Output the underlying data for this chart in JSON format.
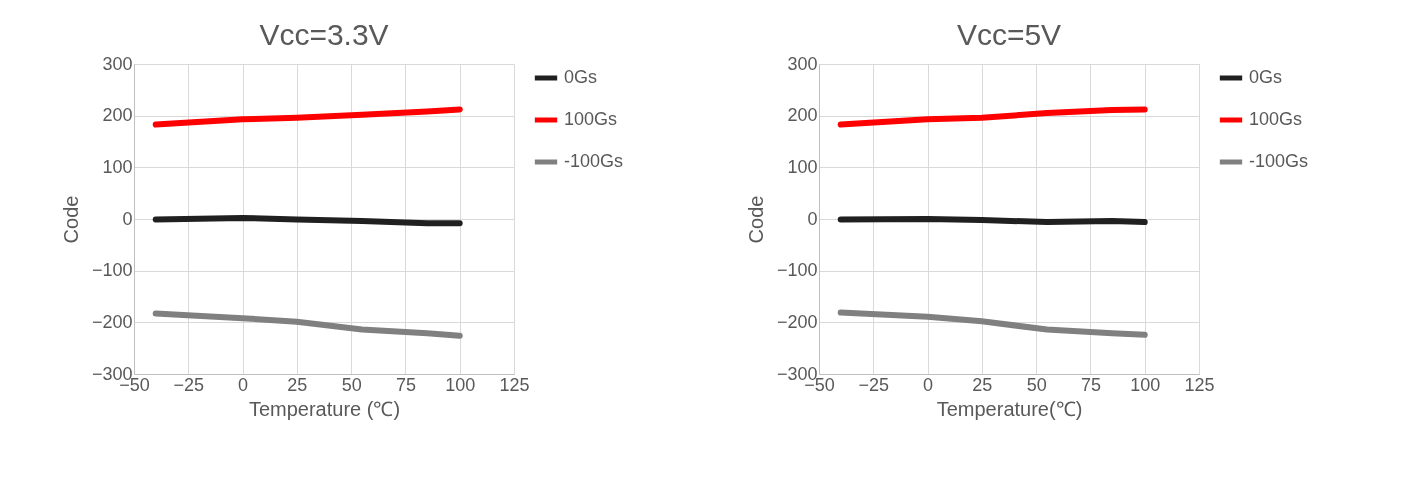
{
  "chart_data": [
    {
      "type": "line",
      "title": "Vcc=3.3V",
      "xlabel": "Temperature (℃)",
      "ylabel": "Code",
      "xlim": [
        -50,
        125
      ],
      "xticks": [
        -50,
        -25,
        0,
        25,
        50,
        75,
        100,
        125
      ],
      "ylim": [
        -300,
        300
      ],
      "yticks": [
        -300,
        -200,
        -100,
        0,
        100,
        200,
        300
      ],
      "grid": true,
      "legend": "right",
      "marker": "none",
      "line_style": "solid",
      "series": [
        {
          "name": "0Gs",
          "color": "#202020",
          "x": [
            -40,
            0,
            25,
            55,
            85,
            100
          ],
          "values": [
            -1,
            2,
            -1,
            -4,
            -8,
            -8
          ]
        },
        {
          "name": "100Gs",
          "color": "#ff0000",
          "x": [
            -40,
            0,
            25,
            55,
            85,
            100
          ],
          "values": [
            183,
            193,
            196,
            202,
            208,
            212
          ]
        },
        {
          "name": "-100Gs",
          "color": "#808080",
          "x": [
            -40,
            0,
            25,
            55,
            85,
            100
          ],
          "values": [
            -183,
            -192,
            -199,
            -214,
            -221,
            -226
          ]
        }
      ]
    },
    {
      "type": "line",
      "title": "Vcc=5V",
      "xlabel": "Temperature(℃)",
      "ylabel": "Code",
      "xlim": [
        -50,
        125
      ],
      "xticks": [
        -50,
        -25,
        0,
        25,
        50,
        75,
        100,
        125
      ],
      "ylim": [
        -300,
        300
      ],
      "yticks": [
        -300,
        -200,
        -100,
        0,
        100,
        200,
        300
      ],
      "grid": true,
      "legend": "right",
      "marker": "none",
      "line_style": "solid",
      "series": [
        {
          "name": "0Gs",
          "color": "#202020",
          "x": [
            -40,
            0,
            25,
            55,
            85,
            100
          ],
          "values": [
            -1,
            0,
            -2,
            -6,
            -4,
            -6
          ]
        },
        {
          "name": "100Gs",
          "color": "#ff0000",
          "x": [
            -40,
            0,
            25,
            55,
            85,
            100
          ],
          "values": [
            183,
            193,
            196,
            205,
            211,
            212
          ]
        },
        {
          "name": "-100Gs",
          "color": "#808080",
          "x": [
            -40,
            0,
            25,
            55,
            85,
            100
          ],
          "values": [
            -181,
            -189,
            -198,
            -214,
            -221,
            -224
          ]
        }
      ]
    }
  ]
}
